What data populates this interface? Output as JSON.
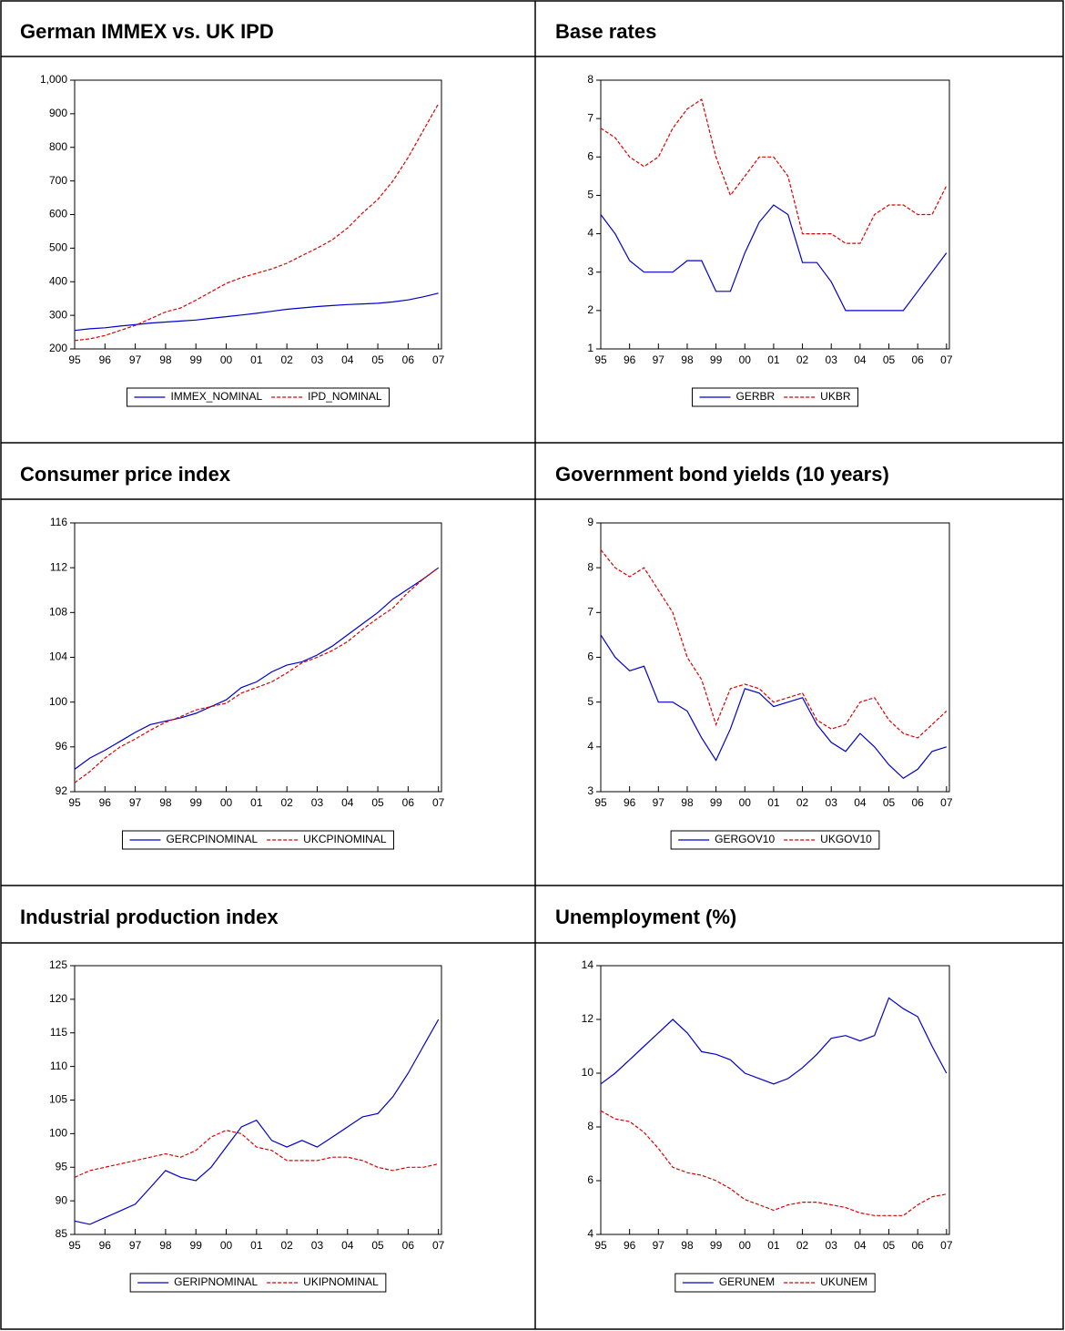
{
  "chart_data": [
    {
      "type": "line",
      "title": "German IMMEX vs. UK IPD",
      "x": [
        1995,
        1995.5,
        1996,
        1996.5,
        1997,
        1997.5,
        1998,
        1998.5,
        1999,
        1999.5,
        2000,
        2000.5,
        2001,
        2001.5,
        2002,
        2002.5,
        2003,
        2003.5,
        2004,
        2004.5,
        2005,
        2005.5,
        2006,
        2006.5,
        2007
      ],
      "xlim": [
        1995,
        2007.1
      ],
      "xticks": [
        {
          "value": 1995,
          "label": "95"
        },
        {
          "value": 1996,
          "label": "96"
        },
        {
          "value": 1997,
          "label": "97"
        },
        {
          "value": 1998,
          "label": "98"
        },
        {
          "value": 1999,
          "label": "99"
        },
        {
          "value": 2000,
          "label": "00"
        },
        {
          "value": 2001,
          "label": "01"
        },
        {
          "value": 2002,
          "label": "02"
        },
        {
          "value": 2003,
          "label": "03"
        },
        {
          "value": 2004,
          "label": "04"
        },
        {
          "value": 2005,
          "label": "05"
        },
        {
          "value": 2006,
          "label": "06"
        },
        {
          "value": 2007,
          "label": "07"
        }
      ],
      "ylim": [
        200,
        1000
      ],
      "yticks": [
        200,
        300,
        400,
        500,
        600,
        700,
        800,
        900,
        {
          "value": 1000,
          "label": "1,000"
        }
      ],
      "series": [
        {
          "name": "IMMEX_NOMINAL",
          "color": "#0000cc",
          "values": [
            255,
            260,
            263,
            268,
            272,
            277,
            280,
            283,
            286,
            291,
            296,
            301,
            306,
            312,
            318,
            322,
            326,
            329,
            332,
            334,
            336,
            340,
            346,
            355,
            366
          ]
        },
        {
          "name": "IPD_NOMINAL",
          "color": "#dd0000",
          "values": [
            225,
            230,
            240,
            255,
            270,
            290,
            310,
            322,
            345,
            370,
            395,
            412,
            425,
            438,
            455,
            478,
            500,
            525,
            560,
            605,
            645,
            700,
            770,
            850,
            930
          ]
        }
      ]
    },
    {
      "type": "line",
      "title": "Base rates",
      "x": [
        1995,
        1995.5,
        1996,
        1996.5,
        1997,
        1997.5,
        1998,
        1998.5,
        1999,
        1999.5,
        2000,
        2000.5,
        2001,
        2001.5,
        2002,
        2002.5,
        2003,
        2003.5,
        2004,
        2004.5,
        2005,
        2005.5,
        2006,
        2006.5,
        2007
      ],
      "xlim": [
        1995,
        2007.1
      ],
      "xticks": [
        {
          "value": 1995,
          "label": "95"
        },
        {
          "value": 1996,
          "label": "96"
        },
        {
          "value": 1997,
          "label": "97"
        },
        {
          "value": 1998,
          "label": "98"
        },
        {
          "value": 1999,
          "label": "99"
        },
        {
          "value": 2000,
          "label": "00"
        },
        {
          "value": 2001,
          "label": "01"
        },
        {
          "value": 2002,
          "label": "02"
        },
        {
          "value": 2003,
          "label": "03"
        },
        {
          "value": 2004,
          "label": "04"
        },
        {
          "value": 2005,
          "label": "05"
        },
        {
          "value": 2006,
          "label": "06"
        },
        {
          "value": 2007,
          "label": "07"
        }
      ],
      "ylim": [
        1,
        8
      ],
      "yticks": [
        1,
        2,
        3,
        4,
        5,
        6,
        7,
        8
      ],
      "series": [
        {
          "name": "GERBR",
          "color": "#0000cc",
          "values": [
            4.5,
            4.0,
            3.3,
            3.0,
            3.0,
            3.0,
            3.3,
            3.3,
            2.5,
            2.5,
            3.5,
            4.3,
            4.75,
            4.5,
            3.25,
            3.25,
            2.75,
            2.0,
            2.0,
            2.0,
            2.0,
            2.0,
            2.5,
            3.0,
            3.5
          ]
        },
        {
          "name": "UKBR",
          "color": "#dd0000",
          "values": [
            6.75,
            6.5,
            6.0,
            5.75,
            6.0,
            6.75,
            7.25,
            7.5,
            6.0,
            5.0,
            5.5,
            6.0,
            6.0,
            5.5,
            4.0,
            4.0,
            4.0,
            3.75,
            3.75,
            4.5,
            4.75,
            4.75,
            4.5,
            4.5,
            5.25
          ]
        }
      ]
    },
    {
      "type": "line",
      "title": "Consumer price index",
      "x": [
        1995,
        1995.5,
        1996,
        1996.5,
        1997,
        1997.5,
        1998,
        1998.5,
        1999,
        1999.5,
        2000,
        2000.5,
        2001,
        2001.5,
        2002,
        2002.5,
        2003,
        2003.5,
        2004,
        2004.5,
        2005,
        2005.5,
        2006,
        2006.5,
        2007
      ],
      "xlim": [
        1995,
        2007.1
      ],
      "xticks": [
        {
          "value": 1995,
          "label": "95"
        },
        {
          "value": 1996,
          "label": "96"
        },
        {
          "value": 1997,
          "label": "97"
        },
        {
          "value": 1998,
          "label": "98"
        },
        {
          "value": 1999,
          "label": "99"
        },
        {
          "value": 2000,
          "label": "00"
        },
        {
          "value": 2001,
          "label": "01"
        },
        {
          "value": 2002,
          "label": "02"
        },
        {
          "value": 2003,
          "label": "03"
        },
        {
          "value": 2004,
          "label": "04"
        },
        {
          "value": 2005,
          "label": "05"
        },
        {
          "value": 2006,
          "label": "06"
        },
        {
          "value": 2007,
          "label": "07"
        }
      ],
      "ylim": [
        92,
        116
      ],
      "yticks": [
        92,
        96,
        100,
        104,
        108,
        112,
        116
      ],
      "series": [
        {
          "name": "GERCPINOMINAL",
          "color": "#0000cc",
          "values": [
            94.0,
            95.0,
            95.7,
            96.5,
            97.3,
            98.0,
            98.3,
            98.6,
            99.0,
            99.6,
            100.2,
            101.3,
            101.8,
            102.7,
            103.3,
            103.6,
            104.2,
            105.0,
            106.0,
            107.0,
            108.0,
            109.2,
            110.1,
            111.0,
            112.0
          ]
        },
        {
          "name": "UKCPINOMINAL",
          "color": "#dd0000",
          "values": [
            92.8,
            93.8,
            95.0,
            96.0,
            96.7,
            97.5,
            98.2,
            98.7,
            99.3,
            99.6,
            99.9,
            100.8,
            101.3,
            101.8,
            102.6,
            103.5,
            104.0,
            104.6,
            105.4,
            106.5,
            107.5,
            108.4,
            109.8,
            111.0,
            112.0
          ]
        }
      ]
    },
    {
      "type": "line",
      "title": "Government bond yields (10 years)",
      "x": [
        1995,
        1995.5,
        1996,
        1996.5,
        1997,
        1997.5,
        1998,
        1998.5,
        1999,
        1999.5,
        2000,
        2000.5,
        2001,
        2001.5,
        2002,
        2002.5,
        2003,
        2003.5,
        2004,
        2004.5,
        2005,
        2005.5,
        2006,
        2006.5,
        2007
      ],
      "xlim": [
        1995,
        2007.1
      ],
      "xticks": [
        {
          "value": 1995,
          "label": "95"
        },
        {
          "value": 1996,
          "label": "96"
        },
        {
          "value": 1997,
          "label": "97"
        },
        {
          "value": 1998,
          "label": "98"
        },
        {
          "value": 1999,
          "label": "99"
        },
        {
          "value": 2000,
          "label": "00"
        },
        {
          "value": 2001,
          "label": "01"
        },
        {
          "value": 2002,
          "label": "02"
        },
        {
          "value": 2003,
          "label": "03"
        },
        {
          "value": 2004,
          "label": "04"
        },
        {
          "value": 2005,
          "label": "05"
        },
        {
          "value": 2006,
          "label": "06"
        },
        {
          "value": 2007,
          "label": "07"
        }
      ],
      "ylim": [
        3,
        9
      ],
      "yticks": [
        3,
        4,
        5,
        6,
        7,
        8,
        9
      ],
      "series": [
        {
          "name": "GERGOV10",
          "color": "#0000cc",
          "values": [
            6.5,
            6.0,
            5.7,
            5.8,
            5.0,
            5.0,
            4.8,
            4.2,
            3.7,
            4.4,
            5.3,
            5.2,
            4.9,
            5.0,
            5.1,
            4.5,
            4.1,
            3.9,
            4.3,
            4.0,
            3.6,
            3.3,
            3.5,
            3.9,
            4.0
          ]
        },
        {
          "name": "UKGOV10",
          "color": "#dd0000",
          "values": [
            8.4,
            8.0,
            7.8,
            8.0,
            7.5,
            7.0,
            6.0,
            5.5,
            4.5,
            5.3,
            5.4,
            5.3,
            5.0,
            5.1,
            5.2,
            4.6,
            4.4,
            4.5,
            5.0,
            5.1,
            4.6,
            4.3,
            4.2,
            4.5,
            4.8
          ]
        }
      ]
    },
    {
      "type": "line",
      "title": "Industrial production index",
      "x": [
        1995,
        1995.5,
        1996,
        1996.5,
        1997,
        1997.5,
        1998,
        1998.5,
        1999,
        1999.5,
        2000,
        2000.5,
        2001,
        2001.5,
        2002,
        2002.5,
        2003,
        2003.5,
        2004,
        2004.5,
        2005,
        2005.5,
        2006,
        2006.5,
        2007
      ],
      "xlim": [
        1995,
        2007.1
      ],
      "xticks": [
        {
          "value": 1995,
          "label": "95"
        },
        {
          "value": 1996,
          "label": "96"
        },
        {
          "value": 1997,
          "label": "97"
        },
        {
          "value": 1998,
          "label": "98"
        },
        {
          "value": 1999,
          "label": "99"
        },
        {
          "value": 2000,
          "label": "00"
        },
        {
          "value": 2001,
          "label": "01"
        },
        {
          "value": 2002,
          "label": "02"
        },
        {
          "value": 2003,
          "label": "03"
        },
        {
          "value": 2004,
          "label": "04"
        },
        {
          "value": 2005,
          "label": "05"
        },
        {
          "value": 2006,
          "label": "06"
        },
        {
          "value": 2007,
          "label": "07"
        }
      ],
      "ylim": [
        85,
        125
      ],
      "yticks": [
        85,
        90,
        95,
        100,
        105,
        110,
        115,
        120,
        125
      ],
      "series": [
        {
          "name": "GERIPNOMINAL",
          "color": "#0000cc",
          "values": [
            87,
            86.5,
            87.5,
            88.5,
            89.5,
            92,
            94.5,
            93.5,
            93,
            95,
            98,
            101,
            102,
            99,
            98,
            99,
            98,
            99.5,
            101,
            102.5,
            103,
            105.5,
            109,
            113,
            117
          ]
        },
        {
          "name": "UKIPNOMINAL",
          "color": "#dd0000",
          "values": [
            93.5,
            94.5,
            95,
            95.5,
            96,
            96.5,
            97,
            96.5,
            97.5,
            99.5,
            100.5,
            100,
            98,
            97.5,
            96,
            96,
            96,
            96.5,
            96.5,
            96,
            95,
            94.5,
            95,
            95,
            95.5
          ]
        }
      ]
    },
    {
      "type": "line",
      "title": "Unemployment (%)",
      "x": [
        1995,
        1995.5,
        1996,
        1996.5,
        1997,
        1997.5,
        1998,
        1998.5,
        1999,
        1999.5,
        2000,
        2000.5,
        2001,
        2001.5,
        2002,
        2002.5,
        2003,
        2003.5,
        2004,
        2004.5,
        2005,
        2005.5,
        2006,
        2006.5,
        2007
      ],
      "xlim": [
        1995,
        2007.1
      ],
      "xticks": [
        {
          "value": 1995,
          "label": "95"
        },
        {
          "value": 1996,
          "label": "96"
        },
        {
          "value": 1997,
          "label": "97"
        },
        {
          "value": 1998,
          "label": "98"
        },
        {
          "value": 1999,
          "label": "99"
        },
        {
          "value": 2000,
          "label": "00"
        },
        {
          "value": 2001,
          "label": "01"
        },
        {
          "value": 2002,
          "label": "02"
        },
        {
          "value": 2003,
          "label": "03"
        },
        {
          "value": 2004,
          "label": "04"
        },
        {
          "value": 2005,
          "label": "05"
        },
        {
          "value": 2006,
          "label": "06"
        },
        {
          "value": 2007,
          "label": "07"
        }
      ],
      "ylim": [
        4,
        14
      ],
      "yticks": [
        4,
        6,
        8,
        10,
        12,
        14
      ],
      "series": [
        {
          "name": "GERUNEM",
          "color": "#0000cc",
          "values": [
            9.6,
            10.0,
            10.5,
            11.0,
            11.5,
            12.0,
            11.5,
            10.8,
            10.7,
            10.5,
            10.0,
            9.8,
            9.6,
            9.8,
            10.2,
            10.7,
            11.3,
            11.4,
            11.2,
            11.4,
            12.8,
            12.4,
            12.1,
            11.0,
            10.0
          ]
        },
        {
          "name": "UKUNEM",
          "color": "#dd0000",
          "values": [
            8.6,
            8.3,
            8.2,
            7.8,
            7.2,
            6.5,
            6.3,
            6.2,
            6.0,
            5.7,
            5.3,
            5.1,
            4.9,
            5.1,
            5.2,
            5.2,
            5.1,
            5.0,
            4.8,
            4.7,
            4.7,
            4.7,
            5.1,
            5.4,
            5.5
          ]
        }
      ]
    }
  ]
}
